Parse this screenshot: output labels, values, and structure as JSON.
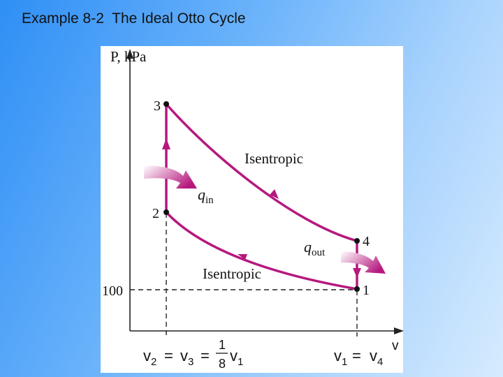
{
  "slide": {
    "title": "Example 8-2  The Ideal Otto Cycle"
  },
  "diagram": {
    "y_axis_label": "P, kPa",
    "x_axis_label": "v",
    "points": {
      "p1": "1",
      "p2": "2",
      "p3": "3",
      "p4": "4"
    },
    "pressure_tick": "100",
    "process_upper": "Isentropic",
    "process_lower": "Isentropic",
    "heat_in": "q",
    "heat_in_sub": "in",
    "heat_out": "q",
    "heat_out_sub": "out",
    "left_eq": {
      "v2": "v",
      "v2_sub": "2",
      "eq1": "=",
      "v3": "v",
      "v3_sub": "3",
      "eq2": "=",
      "num": "1",
      "den": "8",
      "v1": "v",
      "v1_sub": "1"
    },
    "right_eq": {
      "v1": "v",
      "v1_sub": "1",
      "eq": "=",
      "v4": "v",
      "v4_sub": "4"
    }
  },
  "colors": {
    "cycle": "#b5197e",
    "axis": "#222222"
  }
}
